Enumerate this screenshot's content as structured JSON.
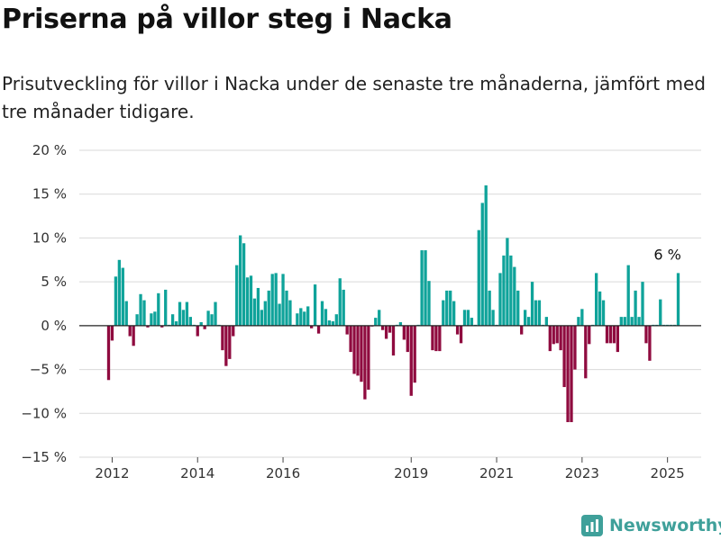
{
  "title": "Priserna på villor steg i Nacka",
  "subtitle": "Prisutveckling för villor i Nacka under de senaste tre månaderna, jämfört med tre månader tidigare.",
  "brand": {
    "name": "Newsworthy",
    "icon": "bar-chart-logo-icon"
  },
  "colors": {
    "positive": "#0fa39a",
    "negative": "#8f0b3f",
    "zero_line": "#222222",
    "grid": "#d9d9d9",
    "brand": "#3fa09a"
  },
  "chart_data": {
    "type": "bar",
    "frequency": "monthly",
    "start": "2011-12",
    "unit": "%",
    "title": "Priserna på villor steg i Nacka",
    "xlabel": "",
    "ylabel": "",
    "ylim": [
      -15,
      20
    ],
    "y_ticks": [
      -15,
      -10,
      -5,
      0,
      5,
      10,
      15,
      20
    ],
    "y_tick_labels": [
      "−15 %",
      "−10 %",
      "−5 %",
      "0 %",
      "5 %",
      "10 %",
      "15 %",
      "20 %"
    ],
    "x_tick_labels": [
      "2012",
      "2014",
      "2016",
      "2019",
      "2021",
      "2023",
      "2025"
    ],
    "x_tick_dates": [
      "2012-01",
      "2014-01",
      "2016-01",
      "2019-01",
      "2021-01",
      "2023-01",
      "2025-01"
    ],
    "grid": true,
    "legend": "none",
    "values": [
      -6.2,
      -1.7,
      5.6,
      7.5,
      6.6,
      2.8,
      -1.2,
      -2.3,
      1.3,
      3.6,
      2.9,
      -0.2,
      1.4,
      1.6,
      3.7,
      -0.2,
      4.1,
      0.1,
      1.3,
      0.5,
      2.7,
      1.8,
      2.7,
      1.0,
      0.1,
      -1.2,
      0.4,
      -0.4,
      1.7,
      1.3,
      2.7,
      0.1,
      -2.8,
      -4.6,
      -3.8,
      -1.2,
      6.9,
      10.3,
      9.4,
      5.5,
      5.7,
      3.1,
      4.3,
      1.8,
      2.8,
      4.0,
      5.9,
      6.0,
      2.5,
      5.9,
      4.0,
      2.9,
      0.1,
      1.4,
      2.0,
      1.6,
      2.2,
      -0.3,
      4.7,
      -0.9,
      2.8,
      1.9,
      0.6,
      0.5,
      1.3,
      5.4,
      4.1,
      -1.0,
      -3.0,
      -5.5,
      -5.7,
      -6.4,
      -8.4,
      -7.3,
      -0.1,
      0.9,
      1.8,
      -0.5,
      -1.5,
      -0.8,
      -3.4,
      0.1,
      0.4,
      -1.6,
      -3.0,
      -8.0,
      -6.5,
      0.1,
      8.6,
      8.6,
      5.1,
      -2.8,
      -2.9,
      -2.9,
      2.9,
      4.0,
      4.0,
      2.8,
      -1.0,
      -2.0,
      1.8,
      1.8,
      0.9,
      0.1,
      10.9,
      14.0,
      16.0,
      4.0,
      1.8,
      0.1,
      6.0,
      8.0,
      10.0,
      8.0,
      6.7,
      4.0,
      -1.0,
      1.8,
      1.0,
      5.0,
      2.9,
      2.9,
      0.1,
      1.0,
      -2.9,
      -2.1,
      -2.0,
      -2.8,
      -7.0,
      -11.0,
      -11.0,
      -5.0,
      1.0,
      1.9,
      -6.0,
      -2.1,
      0.1,
      6.0,
      3.9,
      2.9,
      -2.0,
      -2.0,
      -2.0,
      -3.0,
      1.0,
      1.0,
      6.9,
      1.0,
      4.0,
      1.0,
      5.0,
      -2.0,
      -4.0,
      0.1,
      0.1,
      3.0,
      0.1,
      0.1,
      0.1,
      0.1,
      6.0
    ],
    "annotations": [
      {
        "date": "2025-01",
        "value": 6,
        "text": "6 %"
      }
    ]
  }
}
